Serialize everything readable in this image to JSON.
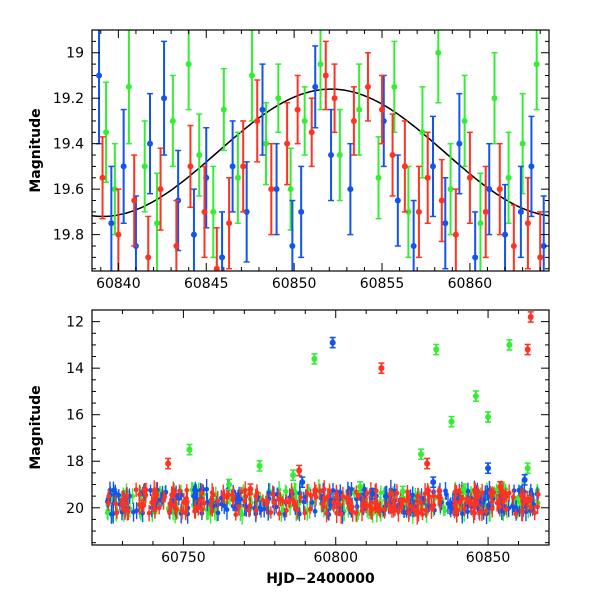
{
  "chart_data": [
    {
      "type": "scatter",
      "title": "",
      "xlabel": "",
      "ylabel": "Magnitude",
      "xlim": [
        60838.5,
        60864.5
      ],
      "ylim": [
        19.96,
        18.9
      ],
      "y_inverted": true,
      "grid": false,
      "xticks": [
        60840,
        60845,
        60850,
        60855,
        60860
      ],
      "yticks": [
        19,
        19.2,
        19.4,
        19.6,
        19.8
      ],
      "colors": {
        "green": "#33ee33",
        "blue": "#1155ee",
        "red": "#ff3322",
        "model": "#000000"
      },
      "model_curve": {
        "description_shape": "sinusoid",
        "peak_x": 60852.1,
        "min_mag": 19.16,
        "max_mag": 19.72,
        "x_range": [
          60838.5,
          60864.5
        ]
      },
      "series": [
        {
          "color": "green",
          "points": [
            [
              60839.3,
              19.35,
              0.22
            ],
            [
              60839.8,
              19.6,
              0.2
            ],
            [
              60840.6,
              19.15,
              0.25
            ],
            [
              60841.5,
              19.5,
              0.2
            ],
            [
              60842.2,
              19.75,
              0.22
            ],
            [
              60843.1,
              19.3,
              0.2
            ],
            [
              60844.0,
              19.05,
              0.2
            ],
            [
              60844.6,
              19.45,
              0.18
            ],
            [
              60845.4,
              19.7,
              0.2
            ],
            [
              60846.0,
              19.25,
              0.18
            ],
            [
              60846.8,
              19.55,
              0.2
            ],
            [
              60847.6,
              19.1,
              0.2
            ],
            [
              60848.4,
              19.4,
              0.18
            ],
            [
              60849.1,
              19.2,
              0.15
            ],
            [
              60849.8,
              19.6,
              0.18
            ],
            [
              60850.6,
              19.3,
              0.15
            ],
            [
              60851.5,
              19.05,
              0.2
            ],
            [
              60852.6,
              19.45,
              0.2
            ],
            [
              60853.7,
              19.25,
              0.2
            ],
            [
              60854.8,
              19.55,
              0.18
            ],
            [
              60855.7,
              19.15,
              0.2
            ],
            [
              60856.5,
              19.7,
              0.2
            ],
            [
              60857.3,
              19.35,
              0.2
            ],
            [
              60858.2,
              19.0,
              0.22
            ],
            [
              60858.9,
              19.6,
              0.2
            ],
            [
              60859.7,
              19.3,
              0.2
            ],
            [
              60860.6,
              19.75,
              0.22
            ],
            [
              60861.4,
              19.2,
              0.2
            ],
            [
              60862.2,
              19.55,
              0.2
            ],
            [
              60863.0,
              19.4,
              0.22
            ],
            [
              60863.8,
              19.05,
              0.2
            ]
          ]
        },
        {
          "color": "blue",
          "points": [
            [
              60838.9,
              19.1,
              0.3
            ],
            [
              60839.6,
              19.75,
              0.25
            ],
            [
              60840.3,
              19.5,
              0.25
            ],
            [
              60841.0,
              19.85,
              0.22
            ],
            [
              60841.8,
              19.4,
              0.22
            ],
            [
              60842.6,
              19.2,
              0.25
            ],
            [
              60843.4,
              19.65,
              0.22
            ],
            [
              60844.3,
              19.8,
              0.2
            ],
            [
              60845.0,
              19.55,
              0.22
            ],
            [
              60845.9,
              19.9,
              0.2
            ],
            [
              60846.5,
              19.5,
              0.2
            ],
            [
              60847.3,
              19.7,
              0.22
            ],
            [
              60848.2,
              19.25,
              0.2
            ],
            [
              60849.0,
              19.6,
              0.2
            ],
            [
              60849.9,
              19.85,
              0.2
            ],
            [
              60850.4,
              19.7,
              0.2
            ],
            [
              60851.2,
              19.15,
              0.18
            ],
            [
              60852.1,
              19.45,
              0.2
            ],
            [
              60853.2,
              19.6,
              0.2
            ],
            [
              60855.1,
              19.3,
              0.2
            ],
            [
              60855.9,
              19.65,
              0.2
            ],
            [
              60856.8,
              19.85,
              0.2
            ],
            [
              60857.9,
              19.5,
              0.22
            ],
            [
              60858.6,
              19.75,
              0.2
            ],
            [
              60859.4,
              19.4,
              0.22
            ],
            [
              60860.3,
              19.9,
              0.2
            ],
            [
              60861.1,
              19.6,
              0.2
            ],
            [
              60862.0,
              19.8,
              0.22
            ],
            [
              60862.9,
              19.7,
              0.2
            ],
            [
              60863.5,
              19.5,
              0.22
            ],
            [
              60864.2,
              19.85,
              0.22
            ]
          ]
        },
        {
          "color": "red",
          "points": [
            [
              60839.1,
              19.55,
              0.18
            ],
            [
              60840.0,
              19.8,
              0.2
            ],
            [
              60840.9,
              19.65,
              0.2
            ],
            [
              60841.7,
              19.9,
              0.18
            ],
            [
              60842.4,
              19.6,
              0.18
            ],
            [
              60843.3,
              19.85,
              0.2
            ],
            [
              60844.1,
              19.5,
              0.18
            ],
            [
              60844.9,
              19.7,
              0.2
            ],
            [
              60845.6,
              19.95,
              0.18
            ],
            [
              60846.3,
              19.75,
              0.2
            ],
            [
              60847.1,
              19.5,
              0.2
            ],
            [
              60847.9,
              19.3,
              0.18
            ],
            [
              60848.7,
              19.6,
              0.2
            ],
            [
              60849.6,
              19.4,
              0.18
            ],
            [
              60850.2,
              19.25,
              0.15
            ],
            [
              60851.0,
              19.35,
              0.15
            ],
            [
              60851.8,
              19.1,
              0.15
            ],
            [
              60852.3,
              19.2,
              0.15
            ],
            [
              60853.4,
              19.3,
              0.15
            ],
            [
              60854.2,
              19.15,
              0.15
            ],
            [
              60855.0,
              19.25,
              0.15
            ],
            [
              60855.6,
              19.45,
              0.18
            ],
            [
              60856.3,
              19.5,
              0.2
            ],
            [
              60857.1,
              19.7,
              0.2
            ],
            [
              60857.6,
              19.55,
              0.2
            ],
            [
              60858.4,
              19.65,
              0.18
            ],
            [
              60859.2,
              19.8,
              0.2
            ],
            [
              60860.0,
              19.55,
              0.2
            ],
            [
              60860.9,
              19.7,
              0.2
            ],
            [
              60861.7,
              19.6,
              0.2
            ],
            [
              60862.5,
              19.85,
              0.18
            ],
            [
              60863.3,
              19.75,
              0.2
            ],
            [
              60864.0,
              19.9,
              0.2
            ]
          ]
        }
      ]
    },
    {
      "type": "scatter",
      "title": "",
      "xlabel": "HJD−2400000",
      "ylabel": "Magnitude",
      "xlim": [
        60720,
        60870
      ],
      "ylim": [
        21.6,
        11.5
      ],
      "y_inverted": true,
      "grid": false,
      "xticks": [
        60750,
        60800,
        60850
      ],
      "yticks": [
        12,
        14,
        16,
        18,
        20
      ],
      "series": [
        {
          "color": "green",
          "points": [
            [
              60752,
              17.5
            ],
            [
              60765,
              19.0
            ],
            [
              60775,
              18.2
            ],
            [
              60786,
              18.6
            ],
            [
              60793,
              13.6
            ],
            [
              60808,
              19.1
            ],
            [
              60822,
              19.3
            ],
            [
              60828,
              17.7
            ],
            [
              60833,
              13.2
            ],
            [
              60838,
              16.3
            ],
            [
              60842,
              19.2
            ],
            [
              60846,
              15.2
            ],
            [
              60850,
              16.1
            ],
            [
              60857,
              13.0
            ],
            [
              60863,
              18.3
            ]
          ]
        },
        {
          "color": "blue",
          "points": [
            [
              60768,
              19.6
            ],
            [
              60789,
              18.9
            ],
            [
              60799,
              12.9
            ],
            [
              60812,
              19.4
            ],
            [
              60832,
              18.9
            ],
            [
              60850,
              18.3
            ],
            [
              60862,
              18.8
            ]
          ]
        },
        {
          "color": "red",
          "points": [
            [
              60745,
              18.1
            ],
            [
              60772,
              19.2
            ],
            [
              60788,
              18.4
            ],
            [
              60815,
              14.0
            ],
            [
              60830,
              18.1
            ],
            [
              60854,
              19.1
            ],
            [
              60863,
              13.2
            ],
            [
              60864,
              11.8
            ]
          ]
        }
      ]
    }
  ]
}
